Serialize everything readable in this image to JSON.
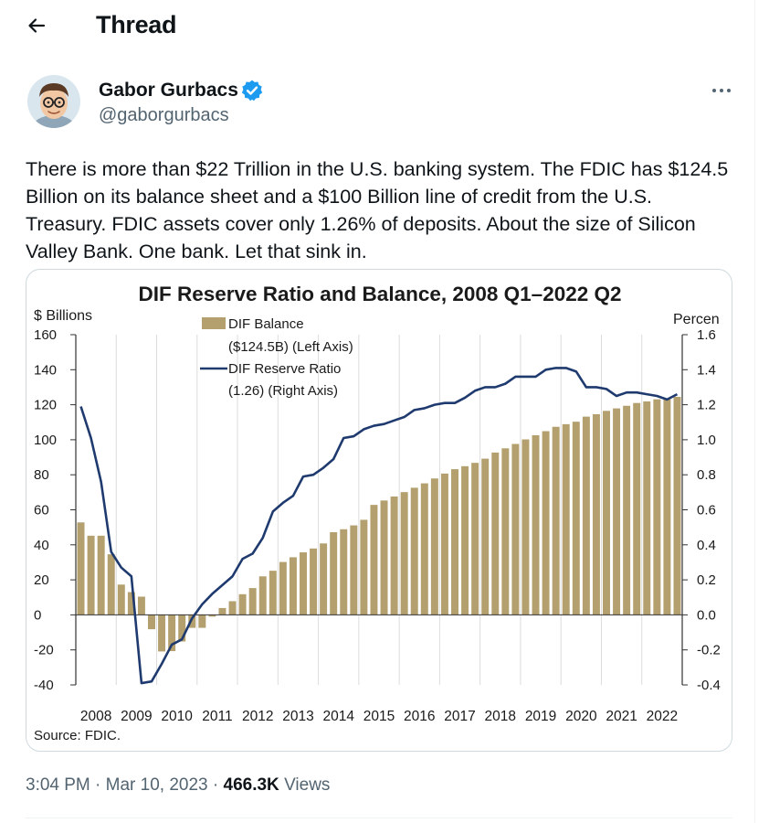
{
  "header": {
    "title": "Thread"
  },
  "tweet": {
    "author_name": "Gabor Gurbacs",
    "handle": "@gaborgurbacs",
    "text": "There is more than $22 Trillion in the U.S. banking system. The FDIC has $124.5 Billion on its balance sheet and a $100 Billion line of credit from the U.S. Treasury. FDIC assets cover only 1.26% of deposits. About the size of Silicon Valley Bank. One bank. Let that sink in.",
    "time": "3:04 PM",
    "date": "Mar 10, 2023",
    "views_count": "466.3K",
    "views_label": "Views",
    "dot": "·"
  },
  "colors": {
    "bar": "#b3a06e",
    "line": "#1f3a6e",
    "verified": "#1d9bf0",
    "muted": "#536471"
  },
  "chart_data": {
    "type": "bar+line",
    "title": "DIF Reserve Ratio and Balance, 2008 Q1–2022 Q2",
    "left_axis_label": "$ Billions",
    "right_axis_label": "Percen",
    "source": "Source: FDIC.",
    "legend": {
      "bar_line1": "DIF Balance",
      "bar_line2": "($124.5B) (Left Axis)",
      "line_line1": "DIF Reserve Ratio",
      "line_line2": "(1.26) (Right Axis)"
    },
    "left_ylim": [
      -40,
      160
    ],
    "right_ylim": [
      -0.4,
      1.6
    ],
    "left_ticks": [
      "160",
      "140",
      "120",
      "100",
      "80",
      "60",
      "40",
      "20",
      "0",
      "-20",
      "-40"
    ],
    "right_ticks": [
      "1.6",
      "1.4",
      "1.2",
      "1.0",
      "0.8",
      "0.6",
      "0.4",
      "0.2",
      "0.0",
      "-0.2",
      "-0.4"
    ],
    "years": [
      "2008",
      "2009",
      "2010",
      "2011",
      "2012",
      "2013",
      "2014",
      "2015",
      "2016",
      "2017",
      "2018",
      "2019",
      "2020",
      "2021",
      "2022"
    ],
    "series": [
      {
        "name": "DIF Balance",
        "axis": "left",
        "values": [
          52.8,
          45.2,
          45.2,
          34.6,
          17.3,
          13.0,
          10.4,
          -8.2,
          -20.9,
          -20.7,
          -15.2,
          -7.4,
          -7.4,
          -1.0,
          3.9,
          7.8,
          11.8,
          15.3,
          22.0,
          25.2,
          30.2,
          32.9,
          35.7,
          37.9,
          40.8,
          47.2,
          48.9,
          51.1,
          54.3,
          62.8,
          65.3,
          67.6,
          70.1,
          72.6,
          75.1,
          77.9,
          80.7,
          83.2,
          84.9,
          86.8,
          89.2,
          92.7,
          95.1,
          97.6,
          100.2,
          102.6,
          104.9,
          107.4,
          108.9,
          110.3,
          113.2,
          114.6,
          116.5,
          117.9,
          119.4,
          121.0,
          121.9,
          123.1,
          123.1,
          124.5
        ]
      },
      {
        "name": "DIF Reserve Ratio",
        "axis": "right",
        "values": [
          1.19,
          1.01,
          0.76,
          0.36,
          0.27,
          0.22,
          -0.39,
          -0.38,
          -0.28,
          -0.17,
          -0.14,
          -0.02,
          0.06,
          0.12,
          0.17,
          0.22,
          0.32,
          0.35,
          0.44,
          0.59,
          0.64,
          0.68,
          0.79,
          0.8,
          0.84,
          0.89,
          1.01,
          1.02,
          1.06,
          1.08,
          1.09,
          1.11,
          1.13,
          1.17,
          1.18,
          1.2,
          1.21,
          1.21,
          1.24,
          1.28,
          1.3,
          1.3,
          1.32,
          1.36,
          1.36,
          1.36,
          1.4,
          1.41,
          1.41,
          1.39,
          1.3,
          1.3,
          1.29,
          1.25,
          1.27,
          1.27,
          1.26,
          1.25,
          1.23,
          1.26
        ]
      }
    ]
  }
}
